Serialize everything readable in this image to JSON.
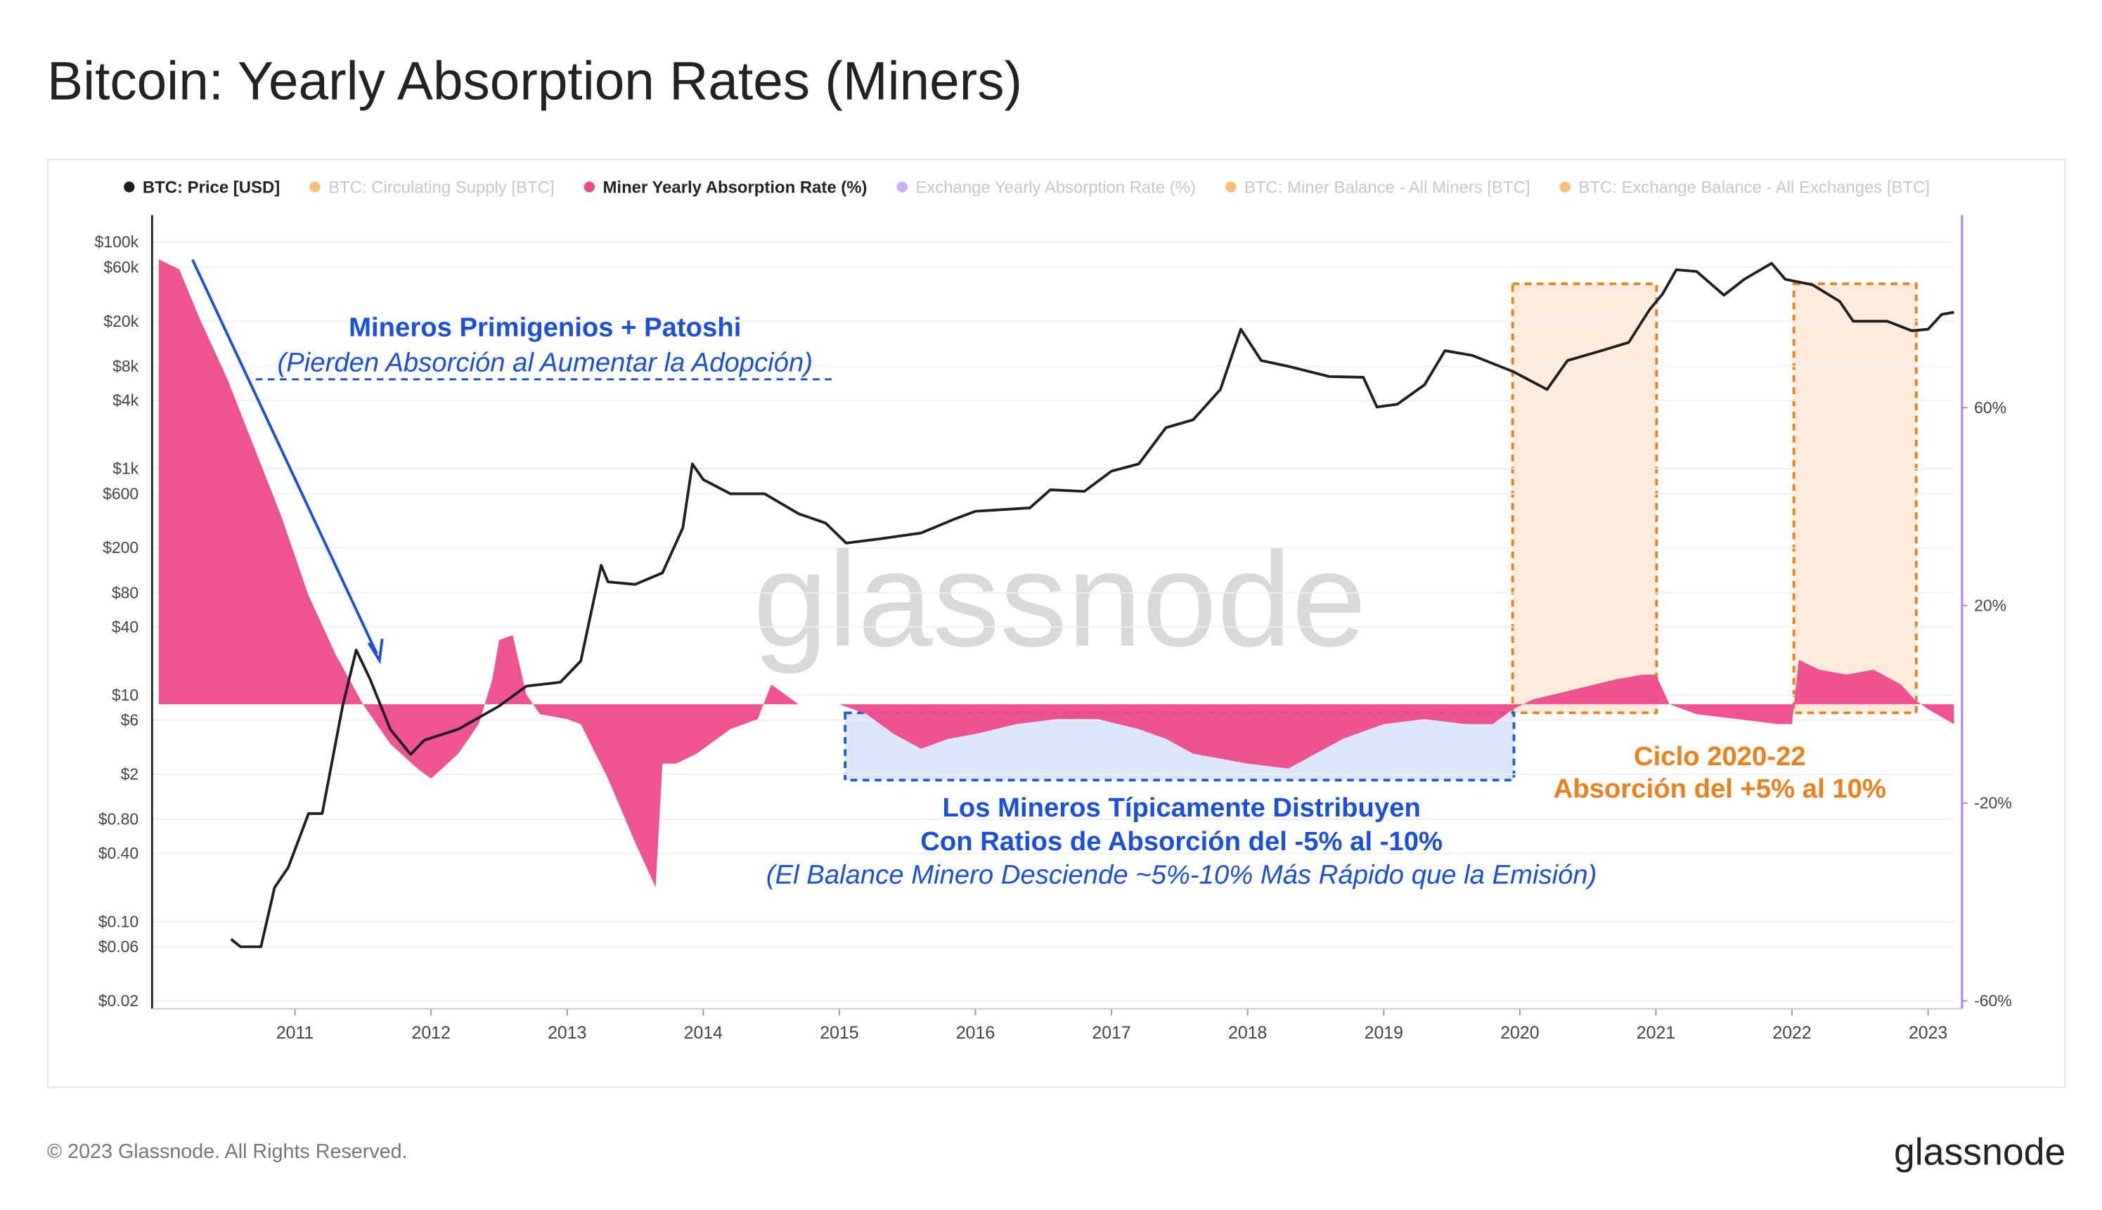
{
  "title": "Bitcoin: Yearly Absorption Rates (Miners)",
  "footer": {
    "copyright": "© 2023 Glassnode. All Rights Reserved.",
    "brand": "glassnode"
  },
  "chart_data": {
    "type": "line",
    "watermark": "glassnode",
    "grid": true,
    "legend_position": "top",
    "xlim": [
      2009.95,
      2023.19
    ],
    "xticks": [
      2011,
      2012,
      2013,
      2014,
      2015,
      2016,
      2017,
      2018,
      2019,
      2020,
      2021,
      2022,
      2023
    ],
    "log_y": true,
    "ylim": [
      0.017,
      100000
    ],
    "yticks": [
      {
        "value": 100000,
        "label": "$100k"
      },
      {
        "value": 60000,
        "label": "$60k"
      },
      {
        "value": 20000,
        "label": "$20k"
      },
      {
        "value": 8000,
        "label": "$8k"
      },
      {
        "value": 4000,
        "label": "$4k"
      },
      {
        "value": 1000,
        "label": "$1k"
      },
      {
        "value": 600,
        "label": "$600"
      },
      {
        "value": 200,
        "label": "$200"
      },
      {
        "value": 80,
        "label": "$80"
      },
      {
        "value": 40,
        "label": "$40"
      },
      {
        "value": 10,
        "label": "$10"
      },
      {
        "value": 6,
        "label": "$6"
      },
      {
        "value": 2,
        "label": "$2"
      },
      {
        "value": 0.8,
        "label": "$0.80"
      },
      {
        "value": 0.4,
        "label": "$0.40"
      },
      {
        "value": 0.1,
        "label": "$0.10"
      },
      {
        "value": 0.06,
        "label": "$0.06"
      },
      {
        "value": 0.02,
        "label": "$0.02"
      }
    ],
    "y2lim": [
      -61.6,
      93.5
    ],
    "y2ticks": [
      {
        "value": 60,
        "label": "60%"
      },
      {
        "value": 20,
        "label": "20%"
      },
      {
        "value": -20,
        "label": "-20%"
      },
      {
        "value": -60,
        "label": "-60%"
      }
    ],
    "y2_axis_color": "#a97cf2",
    "series": [
      {
        "name": "BTC: Price [USD]",
        "color": "#1f1f1f",
        "type": "line",
        "axis": "y",
        "visible": true,
        "x": [
          2010.53,
          2010.6,
          2010.75,
          2010.85,
          2010.95,
          2011.1,
          2011.2,
          2011.35,
          2011.45,
          2011.55,
          2011.7,
          2011.85,
          2011.95,
          2012.2,
          2012.5,
          2012.7,
          2012.95,
          2013.1,
          2013.25,
          2013.3,
          2013.5,
          2013.7,
          2013.85,
          2013.92,
          2014.0,
          2014.2,
          2014.45,
          2014.7,
          2014.9,
          2015.05,
          2015.3,
          2015.6,
          2015.85,
          2016.0,
          2016.4,
          2016.55,
          2016.8,
          2017.0,
          2017.2,
          2017.4,
          2017.6,
          2017.8,
          2017.95,
          2018.1,
          2018.3,
          2018.6,
          2018.85,
          2018.95,
          2019.1,
          2019.3,
          2019.45,
          2019.65,
          2019.95,
          2020.2,
          2020.35,
          2020.6,
          2020.8,
          2020.95,
          2021.05,
          2021.15,
          2021.3,
          2021.5,
          2021.65,
          2021.85,
          2021.95,
          2022.15,
          2022.35,
          2022.45,
          2022.7,
          2022.88,
          2023.0,
          2023.1,
          2023.19
        ],
        "values": [
          0.07,
          0.06,
          0.06,
          0.2,
          0.3,
          0.9,
          0.9,
          8,
          25,
          14,
          5,
          3,
          4,
          5,
          8,
          12,
          13,
          20,
          140,
          100,
          95,
          120,
          300,
          1100,
          800,
          600,
          600,
          400,
          330,
          220,
          240,
          270,
          360,
          420,
          450,
          650,
          630,
          950,
          1100,
          2300,
          2700,
          5000,
          17000,
          9000,
          8000,
          6500,
          6400,
          3500,
          3700,
          5500,
          11000,
          10000,
          7200,
          5000,
          9000,
          11000,
          13000,
          25000,
          35000,
          57000,
          55000,
          34000,
          47000,
          65000,
          47000,
          42000,
          30000,
          20000,
          20000,
          16500,
          17000,
          23000,
          24000
        ]
      },
      {
        "name": "BTC: Circulating Supply [BTC]",
        "color": "#f7931a",
        "visible": false
      },
      {
        "name": "Miner Yearly Absorption Rate (%)",
        "color": "#ee4a8b",
        "type": "area",
        "axis": "y2",
        "visible": true,
        "x": [
          2010.0,
          2010.15,
          2010.3,
          2010.5,
          2010.7,
          2010.9,
          2011.1,
          2011.3,
          2011.5,
          2011.7,
          2011.9,
          2012.0,
          2012.2,
          2012.35,
          2012.45,
          2012.5,
          2012.6,
          2012.7,
          2012.8,
          2013.0,
          2013.1,
          2013.3,
          2013.5,
          2013.65,
          2013.7,
          2013.8,
          2013.95,
          2014.2,
          2014.4,
          2014.5,
          2014.7,
          2015.0,
          2015.2,
          2015.4,
          2015.6,
          2015.8,
          2016.0,
          2016.3,
          2016.6,
          2016.9,
          2017.2,
          2017.4,
          2017.6,
          2017.8,
          2018.0,
          2018.3,
          2018.5,
          2018.7,
          2019.0,
          2019.3,
          2019.6,
          2019.8,
          2019.95,
          2020.1,
          2020.4,
          2020.7,
          2020.9,
          2021.0,
          2021.1,
          2021.3,
          2021.6,
          2021.9,
          2022.0,
          2022.05,
          2022.2,
          2022.4,
          2022.6,
          2022.8,
          2022.9,
          2023.0,
          2023.19
        ],
        "values": [
          90,
          88,
          78,
          66,
          52,
          38,
          22,
          10,
          0,
          -8,
          -13,
          -15,
          -10,
          -4,
          5,
          13,
          14,
          2,
          -2,
          -3,
          -4,
          -15,
          -28,
          -37,
          -12,
          -12,
          -10,
          -5,
          -3,
          4,
          0,
          0,
          -2,
          -6,
          -9,
          -7,
          -6,
          -4,
          -3,
          -3,
          -5,
          -7,
          -10,
          -11,
          -12,
          -13,
          -10,
          -7,
          -4,
          -3,
          -4,
          -4,
          -1,
          1,
          3,
          5,
          6,
          6,
          0,
          -2,
          -3,
          -4,
          -4,
          9,
          7,
          6,
          7,
          4,
          1,
          -1,
          -4
        ]
      },
      {
        "name": "Exchange Yearly Absorption Rate (%)",
        "color": "#a97cf2",
        "visible": false
      },
      {
        "name": "BTC: Miner Balance - All Miners [BTC]",
        "color": "#f7931a",
        "visible": false
      },
      {
        "name": "BTC: Exchange Balance - All Exchanges [BTC]",
        "color": "#f7931a",
        "visible": false
      }
    ],
    "annotations": {
      "early_title": "Mineros Primigenios + Patoshi",
      "early_sub": "(Pierden Absorción al Aumentar la Adopción)",
      "typical_1": "Los Mineros Típicamente Distribuyen",
      "typical_2": "Con Ratios de Absorción del -5% al -10%",
      "typical_3": "(El Balance Minero Desciende ~5%-10% Más Rápido que la Emisión)",
      "cycle_1": "Ciclo 2020-22",
      "cycle_2": "Absorción del +5% al 10%"
    }
  }
}
